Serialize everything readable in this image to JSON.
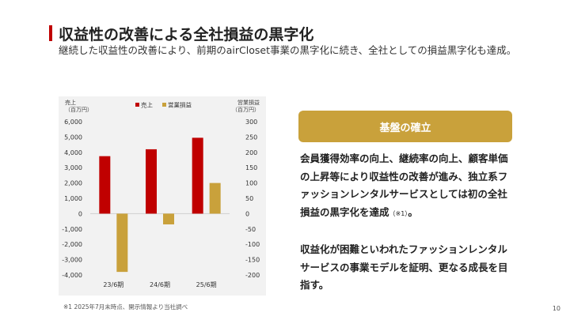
{
  "header": {
    "title": "収益性の改善による全社損益の黒字化",
    "subtitle": "継続した収益性の改善により、前期のairCloset事業の黒字化に続き、全社としての損益黒字化も達成。"
  },
  "chart_data": {
    "type": "bar",
    "categories": [
      "23/6期",
      "24/6期",
      "25/6期"
    ],
    "series": [
      {
        "name": "売上",
        "axis": "left",
        "color": "#c00000",
        "values": [
          3750,
          4200,
          4950
        ]
      },
      {
        "name": "営業損益",
        "axis": "right",
        "color": "#c9a13b",
        "values": [
          -190,
          -35,
          100
        ]
      }
    ],
    "y_left": {
      "label_line1": "売上",
      "label_line2": "（百万円）",
      "range": [
        -4000,
        6000
      ],
      "ticks": [
        "6,000",
        "5,000",
        "4,000",
        "3,000",
        "2,000",
        "1,000",
        "0",
        "-1,000",
        "-2,000",
        "-3,000",
        "-4,000"
      ]
    },
    "y_right": {
      "label_line1": "営業損益",
      "label_line2": "（百万円）",
      "range": [
        -200,
        300
      ],
      "ticks": [
        "300",
        "250",
        "200",
        "150",
        "100",
        "50",
        "0",
        "-50",
        "-100",
        "-150",
        "-200"
      ]
    },
    "legend_position": "top-center",
    "grid": false
  },
  "footnote": "※1 2025年7月末時点、開示情報より当社調べ",
  "panel": {
    "title": "基盤の確立",
    "paragraph1": "会員獲得効率の向上、継続率の向上、顧客単価の上昇等により収益性の改善が進み、独立系ファッションレンタルサービスとしては初の全社損益の黒字化を達成",
    "paragraph1_note": "（※1）",
    "paragraph1_end": "。",
    "paragraph2": "収益化が困難といわれたファッションレンタルサービスの事業モデルを証明、更なる成長を目指す。"
  },
  "page_number": "10",
  "colors": {
    "accent_red": "#c00000",
    "accent_gold": "#c9a13b",
    "chart_background": "#f2f2f2"
  }
}
